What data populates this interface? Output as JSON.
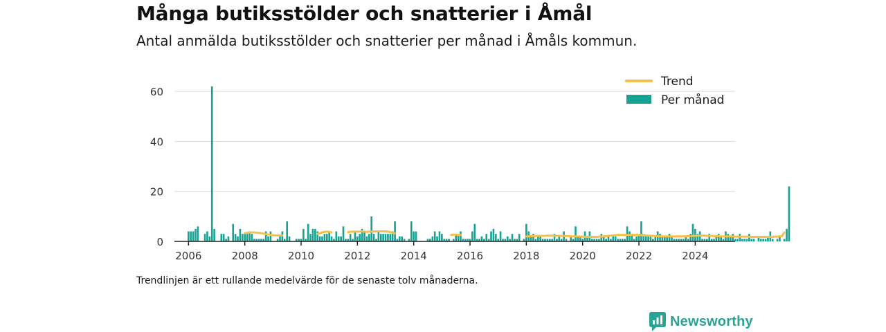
{
  "title": "Många butiksstölder och snatterier i Åmål",
  "subtitle": "Antal anmälda butiksstölder och snatterier per månad i Åmåls kommun.",
  "footnote": "Trendlinjen är ett rullande medelvärde för de senaste tolv månaderna.",
  "brand": {
    "name": "Newsworthy",
    "icon": "newsworthy-logo-icon"
  },
  "colors": {
    "bar": "#16a394",
    "trend": "#f5c04a",
    "axis": "#222222",
    "grid": "#d9d9d9"
  },
  "chart_data": {
    "type": "bar",
    "x_axis": {
      "type": "date",
      "range": [
        "2005-07",
        "2025-06"
      ],
      "ticks": [
        "2006",
        "2008",
        "2010",
        "2012",
        "2014",
        "2016",
        "2018",
        "2020",
        "2022",
        "2024"
      ]
    },
    "y_axis": {
      "range": [
        0,
        65
      ],
      "ticks": [
        "0",
        "20",
        "40",
        "60"
      ]
    },
    "grid": true,
    "legend": {
      "placement": "top-right",
      "entries": [
        {
          "label": "Trend",
          "type": "line"
        },
        {
          "label": "Per månad",
          "type": "bar"
        }
      ]
    },
    "series": [
      {
        "name": "Per månad",
        "type": "bar",
        "start": "2006-01",
        "values": [
          4,
          4,
          4,
          5,
          6,
          0,
          0,
          3,
          4,
          2,
          62,
          5,
          0,
          0,
          3,
          3,
          1,
          2,
          0,
          7,
          3,
          2,
          5,
          3,
          3,
          3,
          4,
          3,
          1,
          1,
          1,
          1,
          1,
          4,
          2,
          4,
          0,
          0,
          1,
          2,
          4,
          1,
          8,
          2,
          0,
          0,
          1,
          1,
          1,
          5,
          1,
          7,
          3,
          5,
          5,
          4,
          2,
          2,
          3,
          3,
          4,
          2,
          1,
          4,
          2,
          2,
          6,
          1,
          1,
          3,
          1,
          4,
          2,
          3,
          5,
          4,
          2,
          3,
          10,
          3,
          1,
          4,
          3,
          3,
          3,
          3,
          3,
          4,
          8,
          1,
          2,
          2,
          1,
          0,
          1,
          8,
          4,
          4,
          0,
          0,
          0,
          0,
          1,
          1,
          2,
          4,
          2,
          4,
          3,
          1,
          1,
          1,
          0,
          1,
          3,
          3,
          4,
          1,
          1,
          1,
          1,
          4,
          7,
          1,
          1,
          2,
          1,
          3,
          1,
          4,
          5,
          3,
          1,
          4,
          1,
          1,
          2,
          1,
          3,
          1,
          1,
          3,
          0,
          1,
          7,
          4,
          2,
          3,
          1,
          2,
          2,
          1,
          1,
          1,
          1,
          1,
          3,
          1,
          2,
          1,
          4,
          1,
          0,
          2,
          1,
          6,
          2,
          2,
          1,
          4,
          2,
          4,
          1,
          1,
          1,
          1,
          3,
          2,
          1,
          2,
          1,
          2,
          2,
          1,
          1,
          1,
          1,
          6,
          4,
          3,
          1,
          2,
          3,
          8,
          3,
          2,
          2,
          2,
          1,
          2,
          4,
          3,
          2,
          2,
          2,
          3,
          2,
          1,
          1,
          1,
          1,
          1,
          2,
          1,
          3,
          7,
          5,
          3,
          4,
          1,
          1,
          1,
          3,
          1,
          1,
          2,
          3,
          2,
          1,
          4,
          3,
          2,
          3,
          1,
          1,
          3,
          1,
          1,
          1,
          3,
          1,
          1,
          0,
          2,
          1,
          1,
          1,
          2,
          4,
          1,
          0,
          1,
          2,
          0,
          1,
          5,
          22
        ]
      },
      {
        "name": "Trend",
        "type": "line",
        "segments": [
          {
            "start": "2008-01",
            "values": [
              3.3,
              3.4,
              3.5,
              3.6,
              3.6,
              3.5,
              3.4,
              3.3,
              3.1,
              2.9,
              2.7,
              2.6,
              2.5,
              2.4,
              2.4,
              2.4,
              2.4
            ]
          },
          {
            "start": "2010-08",
            "values": [
              3.0,
              3.3,
              3.6,
              3.8,
              3.9,
              3.8,
              3.6
            ]
          },
          {
            "start": "2011-09",
            "values": [
              3.7,
              3.8,
              3.9,
              3.9,
              3.9,
              3.9,
              4.0,
              3.9,
              3.8,
              3.9,
              3.9,
              4.0,
              4.0,
              4.0,
              4.0,
              4.0,
              4.0,
              3.9,
              3.7,
              3.4,
              3.2
            ]
          },
          {
            "start": "2015-05",
            "values": [
              2.6,
              2.7,
              2.7,
              2.6,
              2.6
            ]
          },
          {
            "start": "2018-01",
            "values": [
              2.0,
              2.0,
              2.1,
              2.1,
              2.1,
              2.2,
              2.2,
              2.2,
              2.2,
              2.3,
              2.3,
              2.3,
              2.3,
              2.2,
              2.2,
              2.2,
              2.2,
              2.1,
              2.1,
              2.0,
              2.0,
              2.0,
              2.0,
              1.9,
              1.9,
              1.8,
              1.8,
              1.8,
              1.8,
              1.8,
              1.8,
              1.9,
              1.9,
              2.0,
              2.1,
              2.2,
              2.3,
              2.4,
              2.5,
              2.6,
              2.6,
              2.6,
              2.6,
              2.6,
              2.6,
              2.6,
              2.6,
              2.6,
              2.6,
              2.5,
              2.5,
              2.4,
              2.3,
              2.2,
              2.2,
              2.1,
              2.1,
              2.0,
              2.0,
              2.0,
              2.0,
              2.0,
              2.0,
              2.0,
              2.0,
              2.0,
              2.0,
              2.0,
              2.0,
              2.1,
              2.1,
              2.2,
              2.2,
              2.3,
              2.3,
              2.3,
              2.3,
              2.2,
              2.2,
              2.2,
              2.1,
              2.1,
              2.1,
              2.0,
              2.0,
              2.0,
              2.0,
              2.0,
              2.0,
              1.9,
              1.9,
              1.9,
              1.9,
              1.9,
              1.9,
              1.8,
              1.8,
              1.8,
              1.8,
              1.8,
              1.8,
              1.8,
              1.8,
              1.8,
              1.8,
              1.8,
              1.9,
              1.9,
              2.0,
              2.1,
              3.6
            ]
          }
        ]
      }
    ]
  }
}
